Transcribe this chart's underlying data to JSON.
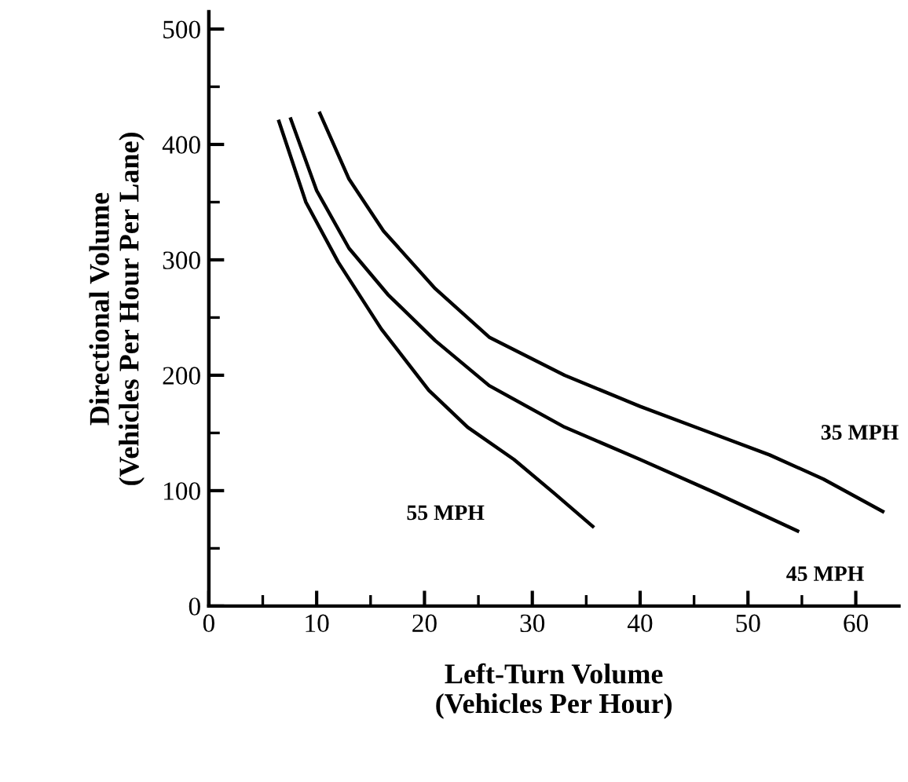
{
  "chart_data": {
    "type": "line",
    "xlabel": "Left-Turn Volume\n(Vehicles Per Hour)",
    "ylabel": "Directional Volume\n(Vehicles Per Hour Per Lane)",
    "series": [
      {
        "name": "35 MPH",
        "color": "#000000",
        "x": [
          10.3,
          13,
          16.2,
          21,
          26,
          33,
          40,
          46,
          52,
          57,
          62.5
        ],
        "values": [
          427,
          370,
          325,
          275,
          233,
          200,
          173,
          152,
          131,
          110,
          82
        ]
      },
      {
        "name": "45 MPH",
        "color": "#000000",
        "x": [
          7.6,
          10,
          13,
          16.6,
          21,
          26,
          33,
          40,
          47,
          54.6
        ],
        "values": [
          422,
          360,
          310,
          270,
          230,
          191,
          155,
          127,
          98,
          65
        ]
      },
      {
        "name": "55 MPH",
        "color": "#000000",
        "x": [
          6.5,
          9,
          12,
          16,
          20.4,
          24,
          28.3,
          32,
          35.6
        ],
        "values": [
          420,
          350,
          298,
          240,
          187,
          155,
          127,
          98,
          69
        ]
      }
    ],
    "xlim": [
      0,
      64
    ],
    "ylim": [
      0,
      515
    ],
    "xticks": [
      0,
      10,
      20,
      30,
      40,
      50,
      60
    ],
    "yticks": [
      0,
      100,
      200,
      300,
      400,
      500
    ],
    "grid": false,
    "legend": false,
    "marker": "none",
    "line_style": "solid"
  }
}
